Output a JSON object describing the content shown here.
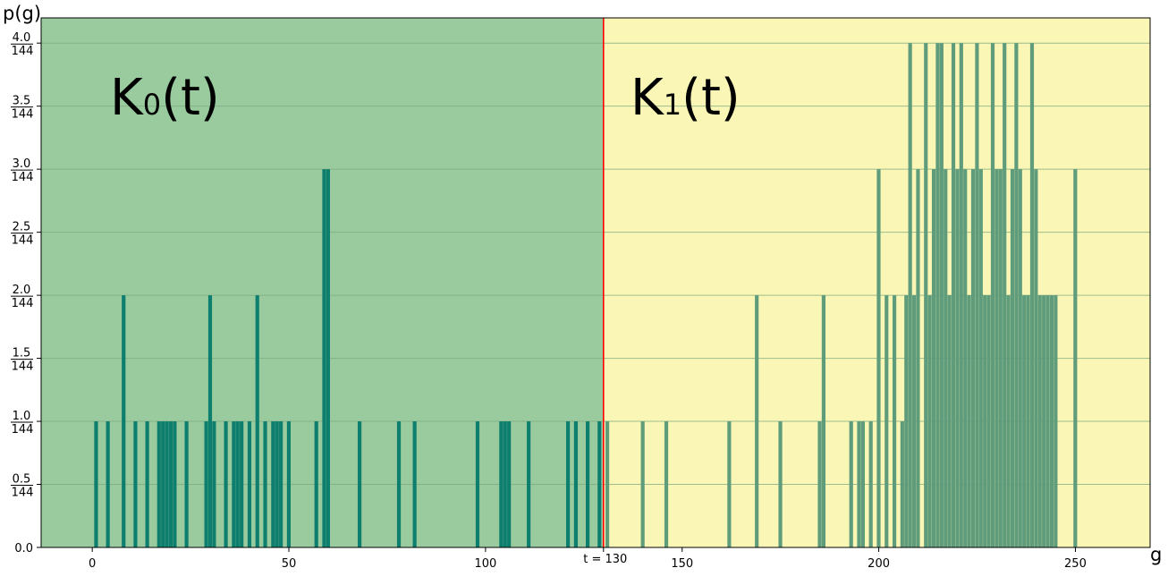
{
  "chart_data": {
    "type": "bar",
    "xlabel": "g",
    "ylabel": "p(g)",
    "xlim": [
      -13,
      269
    ],
    "ylim": [
      0,
      4.2
    ],
    "x_ticks": [
      0,
      50,
      100,
      150,
      200,
      250
    ],
    "y_ticks": [
      {
        "value": 0,
        "label": "0.0"
      },
      {
        "value": 0.5,
        "numerator": "0.5",
        "denominator": "144"
      },
      {
        "value": 1.0,
        "numerator": "1.0",
        "denominator": "144"
      },
      {
        "value": 1.5,
        "numerator": "1.5",
        "denominator": "144"
      },
      {
        "value": 2.0,
        "numerator": "2.0",
        "denominator": "144"
      },
      {
        "value": 2.5,
        "numerator": "2.5",
        "denominator": "144"
      },
      {
        "value": 3.0,
        "numerator": "3.0",
        "denominator": "144"
      },
      {
        "value": 3.5,
        "numerator": "3.5",
        "denominator": "144"
      },
      {
        "value": 4.0,
        "numerator": "4.0",
        "denominator": "144"
      }
    ],
    "grid": true,
    "threshold": {
      "value": 130,
      "label": "t = 130",
      "color": "#ff0000"
    },
    "regions": [
      {
        "label_main": "K",
        "label_sub": "0",
        "label_tail": "(t)",
        "color": "#99cb9f"
      },
      {
        "label_main": "K",
        "label_sub": "1",
        "label_tail": "(t)",
        "color": "#faf7b6"
      }
    ],
    "colors": {
      "bar_class0": "#0e7e6e",
      "bar_class1": "#5f9c7c",
      "grid": "#7fa87f",
      "threshold": "#ff0000"
    },
    "series": [
      {
        "values": [
          [
            1,
            1
          ],
          [
            4,
            1
          ],
          [
            8,
            2
          ],
          [
            11,
            1
          ],
          [
            14,
            1
          ],
          [
            17,
            1
          ],
          [
            18,
            1
          ],
          [
            19,
            1
          ],
          [
            20,
            1
          ],
          [
            21,
            1
          ],
          [
            24,
            1
          ],
          [
            29,
            1
          ],
          [
            30,
            2
          ],
          [
            31,
            1
          ],
          [
            34,
            1
          ],
          [
            36,
            1
          ],
          [
            37,
            1
          ],
          [
            38,
            1
          ],
          [
            40,
            1
          ],
          [
            42,
            2
          ],
          [
            44,
            1
          ],
          [
            46,
            1
          ],
          [
            47,
            1
          ],
          [
            48,
            1
          ],
          [
            50,
            1
          ],
          [
            57,
            1
          ],
          [
            59,
            3
          ],
          [
            60,
            3
          ],
          [
            68,
            1
          ],
          [
            78,
            1
          ],
          [
            82,
            1
          ],
          [
            98,
            1
          ],
          [
            104,
            1
          ],
          [
            105,
            1
          ],
          [
            106,
            1
          ],
          [
            111,
            1
          ],
          [
            121,
            1
          ],
          [
            123,
            1
          ],
          [
            126,
            1
          ],
          [
            129,
            1
          ]
        ]
      },
      {
        "values": [
          [
            131,
            1
          ],
          [
            140,
            1
          ],
          [
            146,
            1
          ],
          [
            162,
            1
          ],
          [
            169,
            2
          ],
          [
            175,
            1
          ],
          [
            185,
            1
          ],
          [
            186,
            2
          ],
          [
            193,
            1
          ],
          [
            195,
            1
          ],
          [
            196,
            1
          ],
          [
            198,
            1
          ],
          [
            200,
            3
          ],
          [
            202,
            2
          ],
          [
            204,
            2
          ],
          [
            206,
            1
          ],
          [
            207,
            2
          ],
          [
            208,
            4
          ],
          [
            209,
            2
          ],
          [
            210,
            3
          ],
          [
            212,
            4
          ],
          [
            213,
            2
          ],
          [
            214,
            3
          ],
          [
            215,
            4
          ],
          [
            216,
            4
          ],
          [
            217,
            3
          ],
          [
            218,
            2
          ],
          [
            219,
            4
          ],
          [
            220,
            3
          ],
          [
            221,
            4
          ],
          [
            222,
            3
          ],
          [
            223,
            2
          ],
          [
            224,
            3
          ],
          [
            225,
            4
          ],
          [
            226,
            3
          ],
          [
            227,
            2
          ],
          [
            228,
            2
          ],
          [
            229,
            4
          ],
          [
            230,
            3
          ],
          [
            231,
            3
          ],
          [
            232,
            4
          ],
          [
            233,
            2
          ],
          [
            234,
            3
          ],
          [
            235,
            4
          ],
          [
            236,
            3
          ],
          [
            237,
            2
          ],
          [
            238,
            2
          ],
          [
            239,
            4
          ],
          [
            240,
            3
          ],
          [
            241,
            2
          ],
          [
            242,
            2
          ],
          [
            243,
            2
          ],
          [
            244,
            2
          ],
          [
            245,
            2
          ],
          [
            250,
            3
          ]
        ]
      }
    ]
  }
}
